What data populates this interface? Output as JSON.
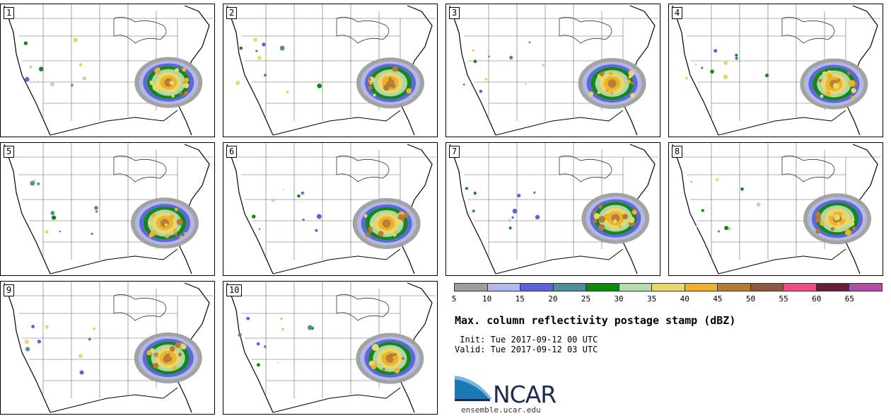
{
  "panels": [
    {
      "label": "1"
    },
    {
      "label": "2"
    },
    {
      "label": "3"
    },
    {
      "label": "4"
    },
    {
      "label": "5"
    },
    {
      "label": "6"
    },
    {
      "label": "7"
    },
    {
      "label": "8"
    },
    {
      "label": "9"
    },
    {
      "label": "10"
    }
  ],
  "colorbar": {
    "ticks": [
      "5",
      "10",
      "15",
      "20",
      "25",
      "30",
      "35",
      "40",
      "45",
      "50",
      "55",
      "60",
      "65"
    ],
    "colors": [
      "#9e9e9e",
      "#b3b9e8",
      "#5b63d6",
      "#4f8f99",
      "#0d8a0d",
      "#b8d9b0",
      "#e8d86a",
      "#eeb129",
      "#b57b38",
      "#8b5a3f",
      "#ef4f7d",
      "#6a1a3a",
      "#b14fa6"
    ]
  },
  "title": "Max. column reflectivity postage stamp (dBZ)",
  "init": " Init: Tue 2017-09-12 00 UTC",
  "valid": "Valid: Tue 2017-09-12 03 UTC",
  "logo": {
    "text": "NCAR",
    "site": "ensemble.ucar.edu"
  }
}
